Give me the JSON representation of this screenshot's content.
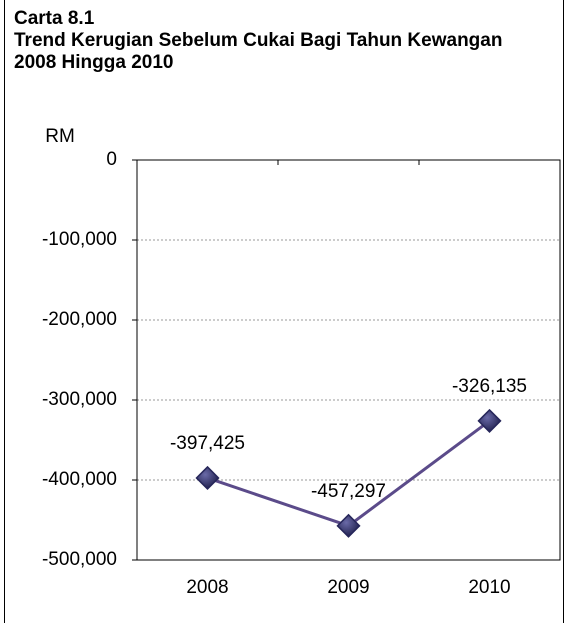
{
  "chart_data": {
    "type": "line",
    "label": "Carta 8.1",
    "title": "Trend Kerugian Sebelum Cukai Bagi Tahun Kewangan 2008 Hingga 2010",
    "ylabel": "RM",
    "categories": [
      "2008",
      "2009",
      "2010"
    ],
    "series": [
      {
        "name": "Kerugian Sebelum Cukai",
        "color": "#5b4b8a",
        "marker_color": "#26265a",
        "values": [
          -397425,
          -457297,
          -326135
        ],
        "value_labels": [
          "-397,425",
          "-457,297",
          "-326,135"
        ]
      }
    ],
    "ylim": [
      -500000,
      0
    ],
    "yticks": [
      {
        "value": -500000,
        "label": "-500,000"
      },
      {
        "value": -400000,
        "label": "-400,000"
      },
      {
        "value": -300000,
        "label": "-300,000"
      },
      {
        "value": -200000,
        "label": "-200,000"
      },
      {
        "value": -100000,
        "label": "-100,000"
      },
      0
    ],
    "grid": true
  }
}
